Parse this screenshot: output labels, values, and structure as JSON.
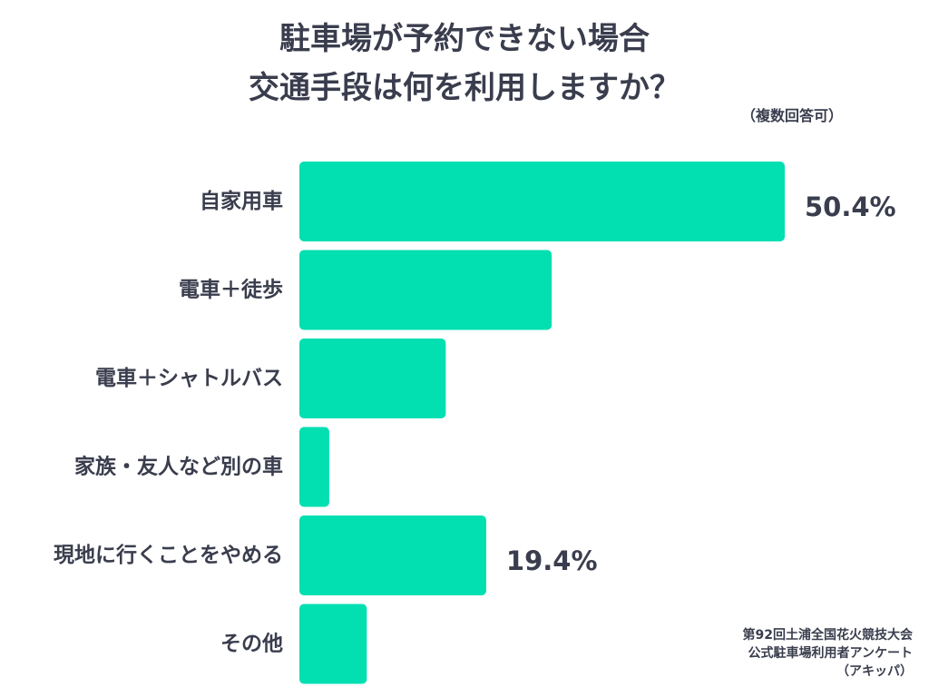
{
  "title_lines": [
    "駐車場が予約できない場合",
    "交通手段は何を利用しますか？"
  ],
  "note": "（複数回答可）",
  "source_lines": [
    "第92回土浦全国花火競技大会",
    "公式駐車場利用者アンケート",
    "（アキッパ）"
  ],
  "bar_color": "#02dfb1",
  "chart_data": {
    "type": "bar",
    "orientation": "horizontal",
    "categories": [
      "自家用車",
      "電車＋徒歩",
      "電車＋シャトルバス",
      "家族・友人など別の車",
      "現地に行くことをやめる",
      "その他"
    ],
    "values": [
      50.4,
      26.2,
      15.2,
      3.1,
      19.4,
      7.0
    ],
    "value_labels": [
      "50.4%",
      "",
      "",
      "",
      "19.4%",
      ""
    ],
    "unit": "%",
    "xlim": [
      0,
      50.4
    ],
    "grid": false,
    "legend": "none"
  }
}
